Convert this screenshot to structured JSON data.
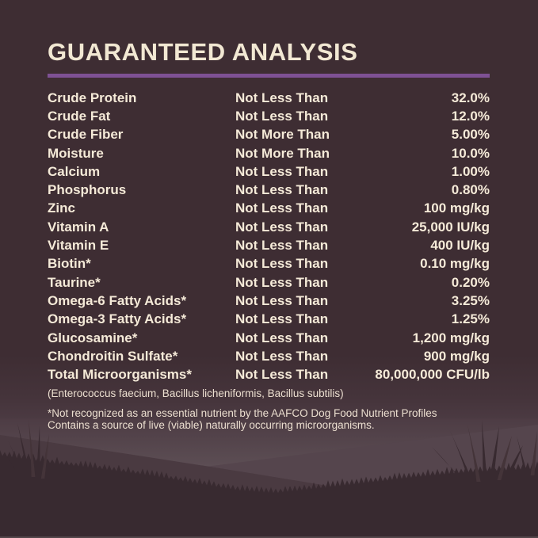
{
  "title": "GUARANTEED ANALYSIS",
  "accent_color": "#7e5194",
  "colors": {
    "background": "#3e2d33",
    "text_cream": "#f5ead8",
    "landscape_light": "#5e5056",
    "hill_mid": "#55454d",
    "hill_dark": "#4a3a41",
    "foreground_grass": "#382a30"
  },
  "table": {
    "rows": [
      {
        "nutrient": "Crude Protein",
        "condition": "Not Less Than",
        "value": "32.0%"
      },
      {
        "nutrient": "Crude Fat",
        "condition": "Not Less Than",
        "value": "12.0%"
      },
      {
        "nutrient": "Crude Fiber",
        "condition": "Not More Than",
        "value": "5.00%"
      },
      {
        "nutrient": "Moisture",
        "condition": "Not More Than",
        "value": "10.0%"
      },
      {
        "nutrient": "Calcium",
        "condition": "Not Less Than",
        "value": "1.00%"
      },
      {
        "nutrient": "Phosphorus",
        "condition": "Not Less Than",
        "value": "0.80%"
      },
      {
        "nutrient": "Zinc",
        "condition": "Not Less Than",
        "value": "100 mg/kg"
      },
      {
        "nutrient": "Vitamin A",
        "condition": "Not Less Than",
        "value": "25,000 IU/kg"
      },
      {
        "nutrient": "Vitamin E",
        "condition": "Not Less Than",
        "value": "400 IU/kg"
      },
      {
        "nutrient": "Biotin*",
        "condition": "Not Less Than",
        "value": "0.10 mg/kg"
      },
      {
        "nutrient": "Taurine*",
        "condition": "Not Less Than",
        "value": "0.20%"
      },
      {
        "nutrient": "Omega-6 Fatty Acids*",
        "condition": "Not Less Than",
        "value": "3.25%"
      },
      {
        "nutrient": "Omega-3 Fatty Acids*",
        "condition": "Not Less Than",
        "value": "1.25%"
      },
      {
        "nutrient": "Glucosamine*",
        "condition": "Not Less Than",
        "value": "1,200 mg/kg"
      },
      {
        "nutrient": "Chondroitin Sulfate*",
        "condition": "Not Less Than",
        "value": "900 mg/kg"
      },
      {
        "nutrient": "Total Microorganisms*",
        "condition": "Not Less Than",
        "value": "80,000,000 CFU/lb"
      }
    ]
  },
  "notes": {
    "microorganism_list": "(Enterococcus faecium, Bacillus licheniformis, Bacillus subtilis)",
    "footnote_line1": "*Not recognized as an essential nutrient by the AAFCO Dog Food Nutrient Profiles",
    "footnote_line2": "Contains a source of live (viable) naturally occurring microorganisms."
  }
}
